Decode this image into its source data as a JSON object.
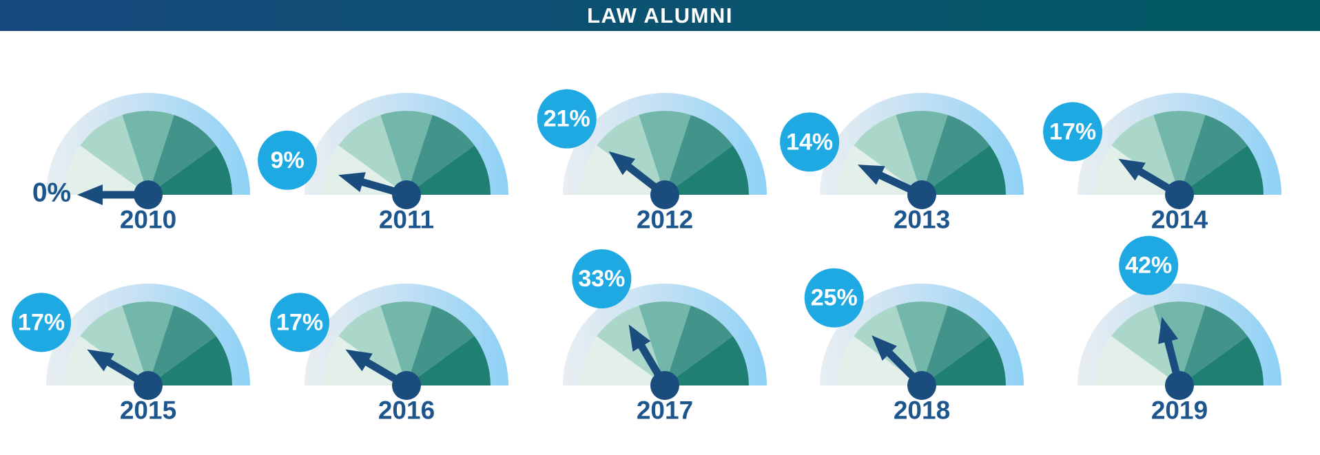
{
  "header": {
    "title": "LAW ALUMNI",
    "gradient_left": "#17497e",
    "gradient_right": "#015b63",
    "text_color": "#ffffff"
  },
  "colors": {
    "badge_blue": "#1fa9e2",
    "badge_text": "#ffffff",
    "needle_navy": "#1a4c7e",
    "year_navy": "#1d568c",
    "zero_label_navy": "#1d568c",
    "ring_gradient": [
      "#e9eef1",
      "#c5e1f4",
      "#8ed1f5"
    ],
    "segments": [
      "#e3efe9",
      "#abd6ca",
      "#73b7ab",
      "#42948a",
      "#1f7f73"
    ],
    "background": "#ffffff"
  },
  "chart_data": {
    "type": "gauge",
    "title": "LAW ALUMNI",
    "unit": "percent",
    "gauge_min": 0,
    "gauge_max": 100,
    "sweep_degrees": 180,
    "segments_per_gauge": 5,
    "legend": "none",
    "rows": 2,
    "columns": 5,
    "gauges": [
      {
        "year": "2010",
        "value": 0,
        "label": "0%",
        "badge": false
      },
      {
        "year": "2011",
        "value": 9,
        "label": "9%",
        "badge": true
      },
      {
        "year": "2012",
        "value": 21,
        "label": "21%",
        "badge": true
      },
      {
        "year": "2013",
        "value": 14,
        "label": "14%",
        "badge": true
      },
      {
        "year": "2014",
        "value": 17,
        "label": "17%",
        "badge": true
      },
      {
        "year": "2015",
        "value": 17,
        "label": "17%",
        "badge": true
      },
      {
        "year": "2016",
        "value": 17,
        "label": "17%",
        "badge": true
      },
      {
        "year": "2017",
        "value": 33,
        "label": "33%",
        "badge": true
      },
      {
        "year": "2018",
        "value": 25,
        "label": "25%",
        "badge": true
      },
      {
        "year": "2019",
        "value": 42,
        "label": "42%",
        "badge": true
      }
    ]
  }
}
